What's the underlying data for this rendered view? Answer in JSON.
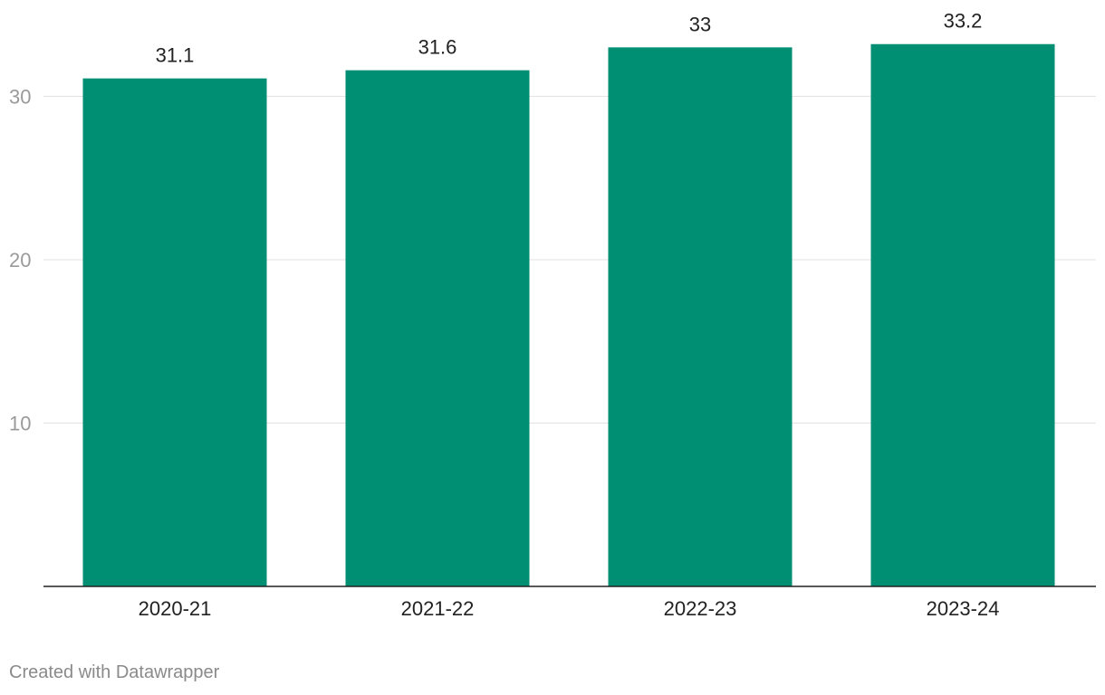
{
  "chart_data": {
    "type": "bar",
    "title": "",
    "xlabel": "",
    "ylabel": "",
    "categories": [
      "2020-21",
      "2021-22",
      "2022-23",
      "2023-24"
    ],
    "values": [
      31.1,
      31.6,
      33,
      33.2
    ],
    "data_labels": [
      "31.1",
      "31.6",
      "33",
      "33.2"
    ],
    "y_ticks": [
      10,
      20,
      30
    ],
    "ylim": [
      0,
      36.5
    ],
    "grid": true,
    "legend": "none",
    "bar_color": "#008f73",
    "gridline_color": "#e2e2e2",
    "baseline_color": "#222222"
  },
  "footer": {
    "credit": "Created with Datawrapper"
  }
}
